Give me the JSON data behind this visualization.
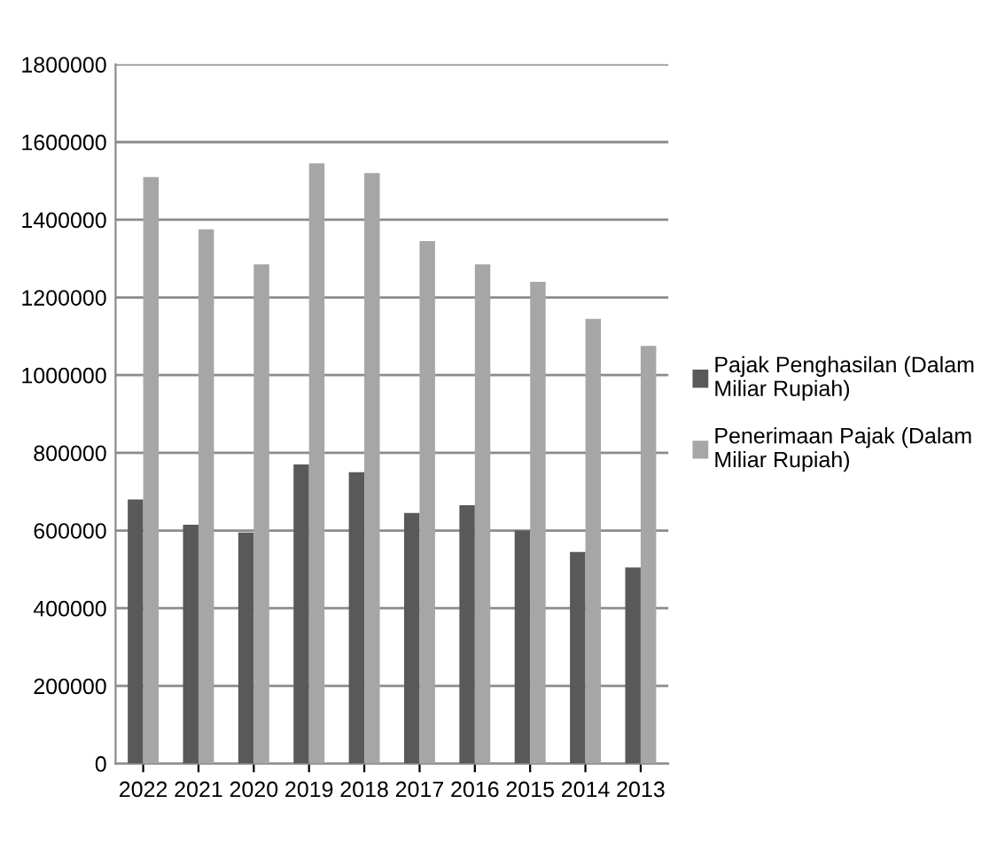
{
  "chart_data": {
    "type": "bar",
    "categories": [
      "2022",
      "2021",
      "2020",
      "2019",
      "2018",
      "2017",
      "2016",
      "2015",
      "2014",
      "2013"
    ],
    "series": [
      {
        "name": "Pajak Penghasilan (Dalam Miliar Rupiah)",
        "color": "#595959",
        "values": [
          680000,
          615000,
          595000,
          770000,
          750000,
          645000,
          665000,
          600000,
          545000,
          505000
        ]
      },
      {
        "name": "Penerimaan Pajak (Dalam Miliar Rupiah)",
        "color": "#a6a6a6",
        "values": [
          1510000,
          1375000,
          1285000,
          1545000,
          1520000,
          1345000,
          1285000,
          1240000,
          1145000,
          1075000
        ]
      }
    ],
    "ylim": [
      0,
      1800000
    ],
    "yticks": [
      0,
      200000,
      400000,
      600000,
      800000,
      1000000,
      1200000,
      1400000,
      1600000,
      1800000
    ],
    "grid": "y",
    "legend": "right"
  }
}
